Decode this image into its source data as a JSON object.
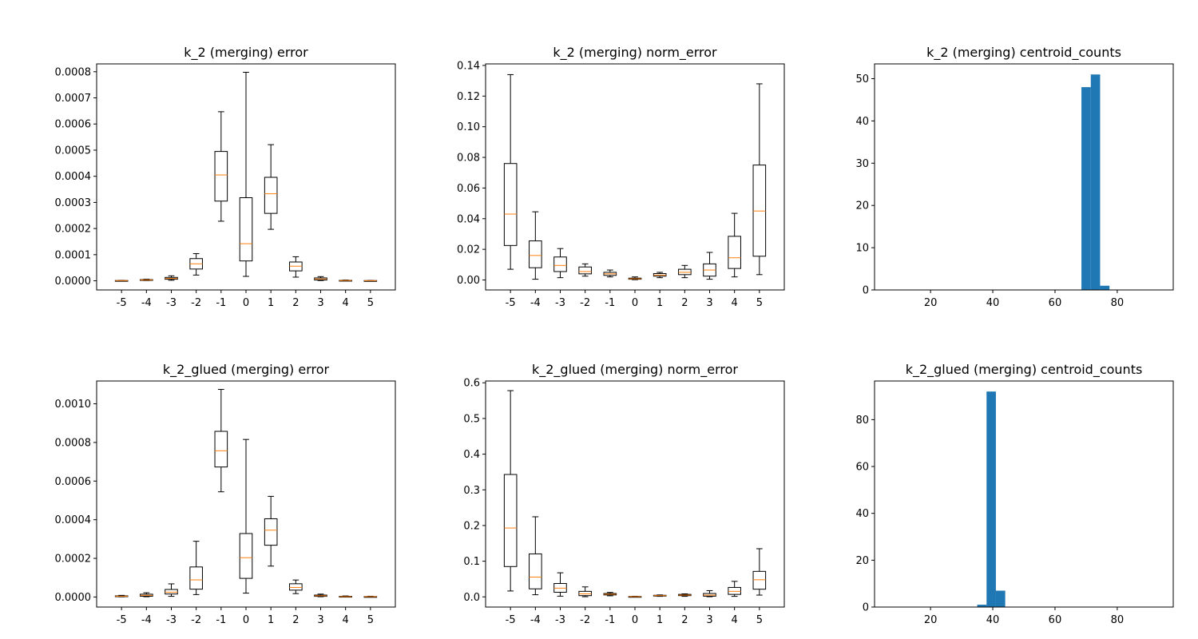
{
  "chart_data": [
    {
      "type": "box",
      "title": "k_2 (merging) error",
      "categories": [
        "-5",
        "-4",
        "-3",
        "-2",
        "-1",
        "0",
        "1",
        "2",
        "3",
        "4",
        "5"
      ],
      "ylim": [
        -3.5e-05,
        0.00083
      ],
      "yticks": [
        0,
        0.0001,
        0.0002,
        0.0003,
        0.0004,
        0.0005,
        0.0006,
        0.0007,
        0.0008
      ],
      "yticklabels": [
        "0.0000",
        "0.0001",
        "0.0002",
        "0.0003",
        "0.0004",
        "0.0005",
        "0.0006",
        "0.0007",
        "0.0008"
      ],
      "boxes": [
        {
          "whislo": 2e-07,
          "q1": 5e-07,
          "med": 8e-07,
          "q3": 1.2e-06,
          "whishi": 1.8e-06
        },
        {
          "whislo": 1e-06,
          "q1": 2e-06,
          "med": 3e-06,
          "q3": 4.5e-06,
          "whishi": 6e-06
        },
        {
          "whislo": 2e-06,
          "q1": 6e-06,
          "med": 9e-06,
          "q3": 1.3e-05,
          "whishi": 1.9e-05
        },
        {
          "whislo": 2.2e-05,
          "q1": 4.5e-05,
          "med": 6.5e-05,
          "q3": 8.5e-05,
          "whishi": 0.000104
        },
        {
          "whislo": 0.000228,
          "q1": 0.000305,
          "med": 0.000405,
          "q3": 0.000495,
          "whishi": 0.000647
        },
        {
          "whislo": 1.7e-05,
          "q1": 7.6e-05,
          "med": 0.000142,
          "q3": 0.000318,
          "whishi": 0.000798
        },
        {
          "whislo": 0.000197,
          "q1": 0.000258,
          "med": 0.000333,
          "q3": 0.000396,
          "whishi": 0.000521
        },
        {
          "whislo": 1.4e-05,
          "q1": 3.8e-05,
          "med": 5.6e-05,
          "q3": 7.2e-05,
          "whishi": 9.2e-05
        },
        {
          "whislo": 1e-06,
          "q1": 3e-06,
          "med": 7e-06,
          "q3": 1.1e-05,
          "whishi": 1.6e-05
        },
        {
          "whislo": 2e-07,
          "q1": 6e-07,
          "med": 1e-06,
          "q3": 1.8e-06,
          "whishi": 2.8e-06
        },
        {
          "whislo": 1e-07,
          "q1": 3e-07,
          "med": 5e-07,
          "q3": 9e-07,
          "whishi": 1.4e-06
        }
      ]
    },
    {
      "type": "box",
      "title": "k_2 (merging) norm_error",
      "categories": [
        "-5",
        "-4",
        "-3",
        "-2",
        "-1",
        "0",
        "1",
        "2",
        "3",
        "4",
        "5"
      ],
      "ylim": [
        -0.0065,
        0.141
      ],
      "yticks": [
        0,
        0.02,
        0.04,
        0.06,
        0.08,
        0.1,
        0.12,
        0.14
      ],
      "yticklabels": [
        "0.00",
        "0.02",
        "0.04",
        "0.06",
        "0.08",
        "0.10",
        "0.12",
        "0.14"
      ],
      "boxes": [
        {
          "whislo": 0.007,
          "q1": 0.0225,
          "med": 0.043,
          "q3": 0.076,
          "whishi": 0.134
        },
        {
          "whislo": 0.0005,
          "q1": 0.008,
          "med": 0.016,
          "q3": 0.0255,
          "whishi": 0.0445
        },
        {
          "whislo": 0.0015,
          "q1": 0.0055,
          "med": 0.0095,
          "q3": 0.015,
          "whishi": 0.0205
        },
        {
          "whislo": 0.0025,
          "q1": 0.004,
          "med": 0.0055,
          "q3": 0.0085,
          "whishi": 0.0105
        },
        {
          "whislo": 0.002,
          "q1": 0.003,
          "med": 0.004,
          "q3": 0.005,
          "whishi": 0.0065
        },
        {
          "whislo": 0.0002,
          "q1": 0.0005,
          "med": 0.0008,
          "q3": 0.0012,
          "whishi": 0.002
        },
        {
          "whislo": 0.0015,
          "q1": 0.0025,
          "med": 0.0032,
          "q3": 0.0042,
          "whishi": 0.005
        },
        {
          "whislo": 0.0015,
          "q1": 0.0035,
          "med": 0.005,
          "q3": 0.007,
          "whishi": 0.0095
        },
        {
          "whislo": 0.0005,
          "q1": 0.0025,
          "med": 0.0065,
          "q3": 0.0105,
          "whishi": 0.018
        },
        {
          "whislo": 0.002,
          "q1": 0.0075,
          "med": 0.0145,
          "q3": 0.0285,
          "whishi": 0.0435
        },
        {
          "whislo": 0.0035,
          "q1": 0.0155,
          "med": 0.045,
          "q3": 0.075,
          "whishi": 0.128
        }
      ]
    },
    {
      "type": "histogram",
      "title": "k_2 (merging) centroid_counts",
      "xlim": [
        2,
        98
      ],
      "ylim": [
        0,
        53.5
      ],
      "xticks": [
        20,
        40,
        60,
        80
      ],
      "xticklabels": [
        "20",
        "40",
        "60",
        "80"
      ],
      "yticks": [
        0,
        10,
        20,
        30,
        40,
        50
      ],
      "yticklabels": [
        "0",
        "10",
        "20",
        "30",
        "40",
        "50"
      ],
      "bars": [
        {
          "x0": 68.5,
          "x1": 71.5,
          "value": 48
        },
        {
          "x0": 71.5,
          "x1": 74.5,
          "value": 51
        },
        {
          "x0": 74.5,
          "x1": 77.5,
          "value": 1
        }
      ]
    },
    {
      "type": "box",
      "title": "k_2_glued (merging) error",
      "categories": [
        "-5",
        "-4",
        "-3",
        "-2",
        "-1",
        "0",
        "1",
        "2",
        "3",
        "4",
        "5"
      ],
      "ylim": [
        -5.2e-05,
        0.001118
      ],
      "yticks": [
        0,
        0.0002,
        0.0004,
        0.0006,
        0.0008,
        0.001
      ],
      "yticklabels": [
        "0.0000",
        "0.0002",
        "0.0004",
        "0.0006",
        "0.0008",
        "0.0010"
      ],
      "boxes": [
        {
          "whislo": 1e-06,
          "q1": 2.5e-06,
          "med": 4e-06,
          "q3": 6e-06,
          "whishi": 8.5e-06
        },
        {
          "whislo": 1.5e-06,
          "q1": 4e-06,
          "med": 8.5e-06,
          "q3": 1.45e-05,
          "whishi": 2.2e-05
        },
        {
          "whislo": 3.5e-06,
          "q1": 1.55e-05,
          "med": 2.5e-05,
          "q3": 3.9e-05,
          "whishi": 6.8e-05
        },
        {
          "whislo": 1.25e-05,
          "q1": 4.05e-05,
          "med": 8.85e-05,
          "q3": 0.0001555,
          "whishi": 0.0002885
        },
        {
          "whislo": 0.0005445,
          "q1": 0.000673,
          "med": 0.000757,
          "q3": 0.0008575,
          "whishi": 0.0010745
        },
        {
          "whislo": 2e-05,
          "q1": 9.65e-05,
          "med": 0.0002035,
          "q3": 0.0003285,
          "whishi": 0.0008155
        },
        {
          "whislo": 0.00016,
          "q1": 0.000268,
          "med": 0.000346,
          "q3": 0.000405,
          "whishi": 0.000521
        },
        {
          "whislo": 1.75e-05,
          "q1": 3.55e-05,
          "med": 4.95e-05,
          "q3": 6.85e-05,
          "whishi": 8.8e-05
        },
        {
          "whislo": 1.5e-06,
          "q1": 3.5e-06,
          "med": 6.5e-06,
          "q3": 1e-05,
          "whishi": 1.5e-05
        },
        {
          "whislo": 5e-07,
          "q1": 1.5e-06,
          "med": 2e-06,
          "q3": 3.5e-06,
          "whishi": 5.5e-06
        },
        {
          "whislo": 5e-07,
          "q1": 1e-06,
          "med": 2e-06,
          "q3": 2.5e-06,
          "whishi": 4e-06
        }
      ]
    },
    {
      "type": "box",
      "title": "k_2_glued (merging) norm_error",
      "categories": [
        "-5",
        "-4",
        "-3",
        "-2",
        "-1",
        "0",
        "1",
        "2",
        "3",
        "4",
        "5"
      ],
      "ylim": [
        -0.0285,
        0.605
      ],
      "yticks": [
        0,
        0.1,
        0.2,
        0.3,
        0.4,
        0.5,
        0.6
      ],
      "yticklabels": [
        "0.0",
        "0.1",
        "0.2",
        "0.3",
        "0.4",
        "0.5",
        "0.6"
      ],
      "boxes": [
        {
          "whislo": 0.0165,
          "q1": 0.085,
          "med": 0.193,
          "q3": 0.343,
          "whishi": 0.578
        },
        {
          "whislo": 0.006,
          "q1": 0.0225,
          "med": 0.0555,
          "q3": 0.1205,
          "whishi": 0.2245
        },
        {
          "whislo": 0.002,
          "q1": 0.013,
          "med": 0.0245,
          "q3": 0.0375,
          "whishi": 0.0675
        },
        {
          "whislo": 0.0005,
          "q1": 0.0035,
          "med": 0.0085,
          "q3": 0.0155,
          "whishi": 0.028
        },
        {
          "whislo": 0.003,
          "q1": 0.0055,
          "med": 0.0075,
          "q3": 0.0095,
          "whishi": 0.0125
        },
        {
          "whislo": 0.0002,
          "q1": 0.0005,
          "med": 0.0008,
          "q3": 0.0012,
          "whishi": 0.0018
        },
        {
          "whislo": 0.0015,
          "q1": 0.0025,
          "med": 0.0035,
          "q3": 0.0045,
          "whishi": 0.0055
        },
        {
          "whislo": 0.0015,
          "q1": 0.0035,
          "med": 0.005,
          "q3": 0.007,
          "whishi": 0.0085
        },
        {
          "whislo": 0.0005,
          "q1": 0.002,
          "med": 0.005,
          "q3": 0.0095,
          "whishi": 0.0175
        },
        {
          "whislo": 0.0015,
          "q1": 0.007,
          "med": 0.0155,
          "q3": 0.0265,
          "whishi": 0.0435
        },
        {
          "whislo": 0.005,
          "q1": 0.0215,
          "med": 0.048,
          "q3": 0.0715,
          "whishi": 0.135
        }
      ]
    },
    {
      "type": "histogram",
      "title": "k_2_glued (merging) centroid_counts",
      "xlim": [
        2,
        98
      ],
      "ylim": [
        0,
        96.5
      ],
      "xticks": [
        20,
        40,
        60,
        80
      ],
      "xticklabels": [
        "20",
        "40",
        "60",
        "80"
      ],
      "yticks": [
        0,
        20,
        40,
        60,
        80
      ],
      "yticklabels": [
        "0",
        "20",
        "40",
        "60",
        "80"
      ],
      "bars": [
        {
          "x0": 35,
          "x1": 38,
          "value": 1
        },
        {
          "x0": 38,
          "x1": 41,
          "value": 92
        },
        {
          "x0": 41,
          "x1": 44,
          "value": 7
        }
      ]
    }
  ],
  "colors": {
    "box_line": "#000000",
    "median": "#ff7f0e",
    "hist_bar": "#1f77b4"
  }
}
